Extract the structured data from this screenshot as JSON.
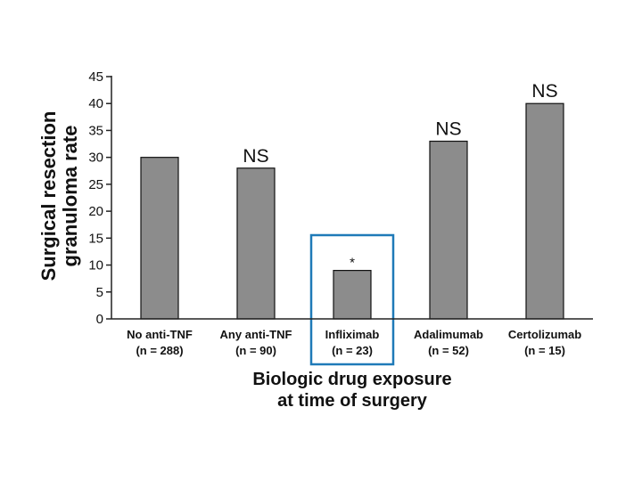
{
  "chart_data": {
    "type": "bar",
    "categories": [
      "No anti-TNF",
      "Any anti-TNF",
      "Infliximab",
      "Adalimumab",
      "Certolizumab"
    ],
    "category_counts": [
      "(n = 288)",
      "(n = 90)",
      "(n = 23)",
      "(n = 52)",
      "(n = 15)"
    ],
    "values": [
      30,
      28,
      9,
      33,
      40
    ],
    "annotations": [
      "",
      "NS",
      "*",
      "NS",
      "NS"
    ],
    "highlighted_category": "Infliximab",
    "ylabel_lines": [
      "Surgical resection",
      "granuloma rate"
    ],
    "xlabel_lines": [
      "Biologic drug exposure",
      "at time of surgery"
    ],
    "ylim": [
      0,
      45
    ],
    "yticks": [
      0,
      5,
      10,
      15,
      20,
      25,
      30,
      35,
      40,
      45
    ],
    "grid": false,
    "legend": "none",
    "colors": {
      "bar": "#8c8c8c",
      "bar_edge": "#111111",
      "highlight_box": "#1f7ab8",
      "axis": "#222222"
    }
  }
}
